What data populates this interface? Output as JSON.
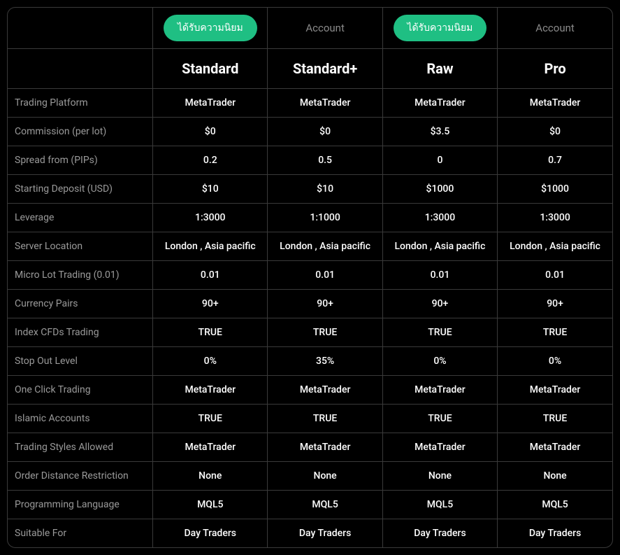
{
  "colors": {
    "background": "#000000",
    "border": "#3a3a3a",
    "text_primary": "#ffffff",
    "text_muted": "#9a9a9a",
    "badge_popular_bg": "#1fbf83",
    "badge_muted_text": "#8a8a8a"
  },
  "badges": [
    {
      "type": "popular",
      "label": "ได้รับความนิยม"
    },
    {
      "type": "muted",
      "label": "Account"
    },
    {
      "type": "popular",
      "label": "ได้รับความนิยม"
    },
    {
      "type": "muted",
      "label": "Account"
    }
  ],
  "plans": [
    "Standard",
    "Standard+",
    "Raw",
    "Pro"
  ],
  "rows": [
    {
      "label": "Trading Platform",
      "values": [
        "MetaTrader",
        "MetaTrader",
        "MetaTrader",
        "MetaTrader"
      ]
    },
    {
      "label": "Commission (per lot)",
      "values": [
        "$0",
        "$0",
        "$3.5",
        "$0"
      ]
    },
    {
      "label": "Spread from (PIPs)",
      "values": [
        "0.2",
        "0.5",
        "0",
        "0.7"
      ]
    },
    {
      "label": "Starting Deposit (USD)",
      "values": [
        "$10",
        "$10",
        "$1000",
        "$1000"
      ]
    },
    {
      "label": "Leverage",
      "values": [
        "1:3000",
        "1:1000",
        "1:3000",
        "1:3000"
      ]
    },
    {
      "label": "Server Location",
      "values": [
        "London , Asia pacific",
        "London , Asia pacific",
        "London , Asia pacific",
        "London , Asia pacific"
      ]
    },
    {
      "label": "Micro Lot Trading (0.01)",
      "values": [
        "0.01",
        "0.01",
        "0.01",
        "0.01"
      ]
    },
    {
      "label": "Currency Pairs",
      "values": [
        "90+",
        "90+",
        "90+",
        "90+"
      ]
    },
    {
      "label": "Index CFDs Trading",
      "values": [
        "TRUE",
        "TRUE",
        "TRUE",
        "TRUE"
      ]
    },
    {
      "label": "Stop Out Level",
      "values": [
        "0%",
        "35%",
        "0%",
        "0%"
      ]
    },
    {
      "label": "One Click Trading",
      "values": [
        "MetaTrader",
        "MetaTrader",
        "MetaTrader",
        "MetaTrader"
      ]
    },
    {
      "label": "Islamic Accounts",
      "values": [
        "TRUE",
        "TRUE",
        "TRUE",
        "TRUE"
      ]
    },
    {
      "label": "Trading Styles Allowed",
      "values": [
        "MetaTrader",
        "MetaTrader",
        "MetaTrader",
        "MetaTrader"
      ]
    },
    {
      "label": "Order Distance Restriction",
      "values": [
        "None",
        "None",
        "None",
        "None"
      ]
    },
    {
      "label": "Programming Language",
      "values": [
        "MQL5",
        "MQL5",
        "MQL5",
        "MQL5"
      ]
    },
    {
      "label": "Suitable For",
      "values": [
        "Day Traders",
        "Day Traders",
        "Day Traders",
        "Day Traders"
      ]
    }
  ]
}
